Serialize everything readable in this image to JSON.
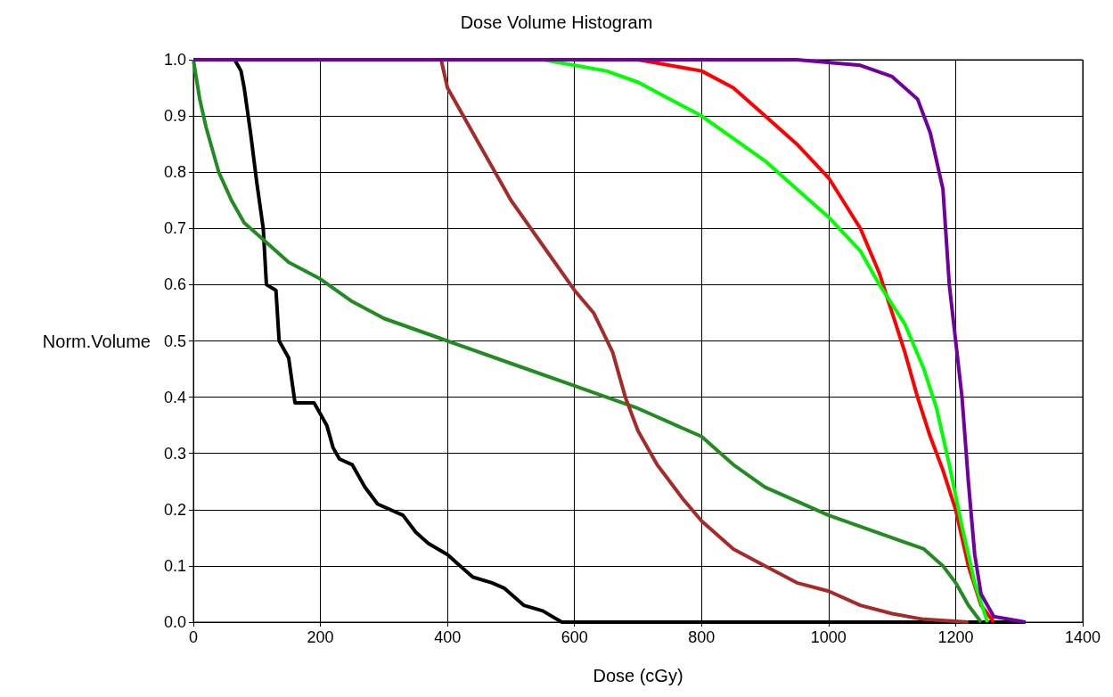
{
  "chart_data": {
    "type": "line",
    "title": "Dose Volume Histogram",
    "xlabel": "Dose (cGy)",
    "ylabel": "Norm.Volume",
    "xlim": [
      0,
      1400
    ],
    "xticks": [
      0,
      200,
      400,
      600,
      800,
      1000,
      1200,
      1400
    ],
    "ylim": [
      0,
      1
    ],
    "yticks": [
      {
        "value": 0,
        "label": "0.0"
      },
      0.1,
      0.2,
      0.3,
      0.4,
      0.5,
      0.6,
      0.7,
      0.8,
      0.9,
      {
        "value": 1,
        "label": "1.0"
      }
    ],
    "grid": true,
    "marker": "none",
    "line_style": "solid",
    "series": [
      {
        "color": "#000000",
        "x": [
          0,
          65,
          75,
          80,
          90,
          100,
          110,
          115,
          130,
          135,
          150,
          160,
          190,
          200,
          210,
          220,
          230,
          250,
          270,
          290,
          330,
          350,
          370,
          400,
          420,
          440,
          470,
          490,
          520,
          550,
          580,
          1310
        ],
        "values": [
          1,
          1,
          0.98,
          0.95,
          0.87,
          0.78,
          0.7,
          0.6,
          0.59,
          0.5,
          0.47,
          0.39,
          0.39,
          0.37,
          0.35,
          0.31,
          0.29,
          0.28,
          0.24,
          0.21,
          0.19,
          0.16,
          0.14,
          0.12,
          0.1,
          0.08,
          0.07,
          0.06,
          0.03,
          0.02,
          0,
          0
        ]
      },
      {
        "color": "#228b22",
        "x": [
          0,
          10,
          20,
          40,
          60,
          80,
          100,
          150,
          200,
          250,
          300,
          400,
          500,
          600,
          700,
          800,
          850,
          900,
          1000,
          1100,
          1150,
          1180,
          1200,
          1220,
          1240
        ],
        "values": [
          1,
          0.93,
          0.88,
          0.8,
          0.75,
          0.71,
          0.69,
          0.64,
          0.61,
          0.57,
          0.54,
          0.5,
          0.46,
          0.42,
          0.38,
          0.33,
          0.28,
          0.24,
          0.19,
          0.15,
          0.13,
          0.1,
          0.07,
          0.03,
          0
        ]
      },
      {
        "color": "#a52a2a",
        "x": [
          0,
          390,
          400,
          450,
          500,
          550,
          600,
          630,
          660,
          680,
          700,
          730,
          770,
          800,
          850,
          900,
          950,
          1000,
          1050,
          1100,
          1150,
          1220
        ],
        "values": [
          1,
          1,
          0.95,
          0.85,
          0.75,
          0.67,
          0.59,
          0.55,
          0.48,
          0.4,
          0.34,
          0.28,
          0.22,
          0.18,
          0.13,
          0.1,
          0.07,
          0.055,
          0.03,
          0.015,
          0.005,
          0
        ]
      },
      {
        "color": "#ff0000",
        "x": [
          0,
          700,
          800,
          850,
          900,
          950,
          1000,
          1050,
          1080,
          1100,
          1120,
          1140,
          1160,
          1180,
          1200,
          1220,
          1240,
          1260
        ],
        "values": [
          1,
          1,
          0.98,
          0.95,
          0.9,
          0.85,
          0.79,
          0.7,
          0.62,
          0.55,
          0.48,
          0.4,
          0.33,
          0.27,
          0.2,
          0.1,
          0.03,
          0
        ]
      },
      {
        "color": "#00ff00",
        "x": [
          0,
          550,
          600,
          650,
          700,
          750,
          800,
          850,
          900,
          950,
          1000,
          1050,
          1080,
          1120,
          1150,
          1170,
          1190,
          1210,
          1230,
          1250
        ],
        "values": [
          1,
          1,
          0.99,
          0.98,
          0.96,
          0.93,
          0.9,
          0.86,
          0.82,
          0.77,
          0.72,
          0.66,
          0.6,
          0.53,
          0.45,
          0.38,
          0.28,
          0.17,
          0.07,
          0
        ]
      },
      {
        "color": "#7000a0",
        "x": [
          0,
          950,
          1050,
          1100,
          1140,
          1160,
          1180,
          1190,
          1200,
          1210,
          1220,
          1230,
          1240,
          1260,
          1310
        ],
        "values": [
          1,
          1,
          0.99,
          0.97,
          0.93,
          0.87,
          0.77,
          0.6,
          0.5,
          0.4,
          0.25,
          0.12,
          0.05,
          0.01,
          0
        ]
      }
    ]
  }
}
